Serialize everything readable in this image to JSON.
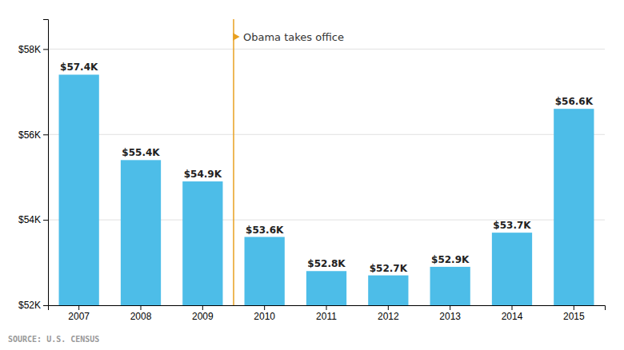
{
  "chart_data": {
    "type": "bar",
    "categories": [
      "2007",
      "2008",
      "2009",
      "2010",
      "2011",
      "2012",
      "2013",
      "2014",
      "2015"
    ],
    "values": [
      57400,
      55400,
      54900,
      53600,
      52800,
      52700,
      52900,
      53700,
      56600
    ],
    "value_labels": [
      "$57.4K",
      "$55.4K",
      "$54.9K",
      "$53.6K",
      "$52.8K",
      "$52.7K",
      "$52.9K",
      "$53.7K",
      "$56.6K"
    ],
    "data_labels": true,
    "color": "#4DBDE8",
    "ylim": [
      52000,
      58700
    ],
    "yticks": [
      {
        "value": 52000,
        "label": "$52K"
      },
      {
        "value": 54000,
        "label": "$54K"
      },
      {
        "value": 56000,
        "label": "$56K"
      },
      {
        "value": 58000,
        "label": "$58K"
      }
    ],
    "grid": true,
    "annotations": [
      {
        "text": "Obama takes office",
        "x": 2.5,
        "color": "#E8A020"
      }
    ],
    "source": "SOURCE: U.S. CENSUS"
  }
}
